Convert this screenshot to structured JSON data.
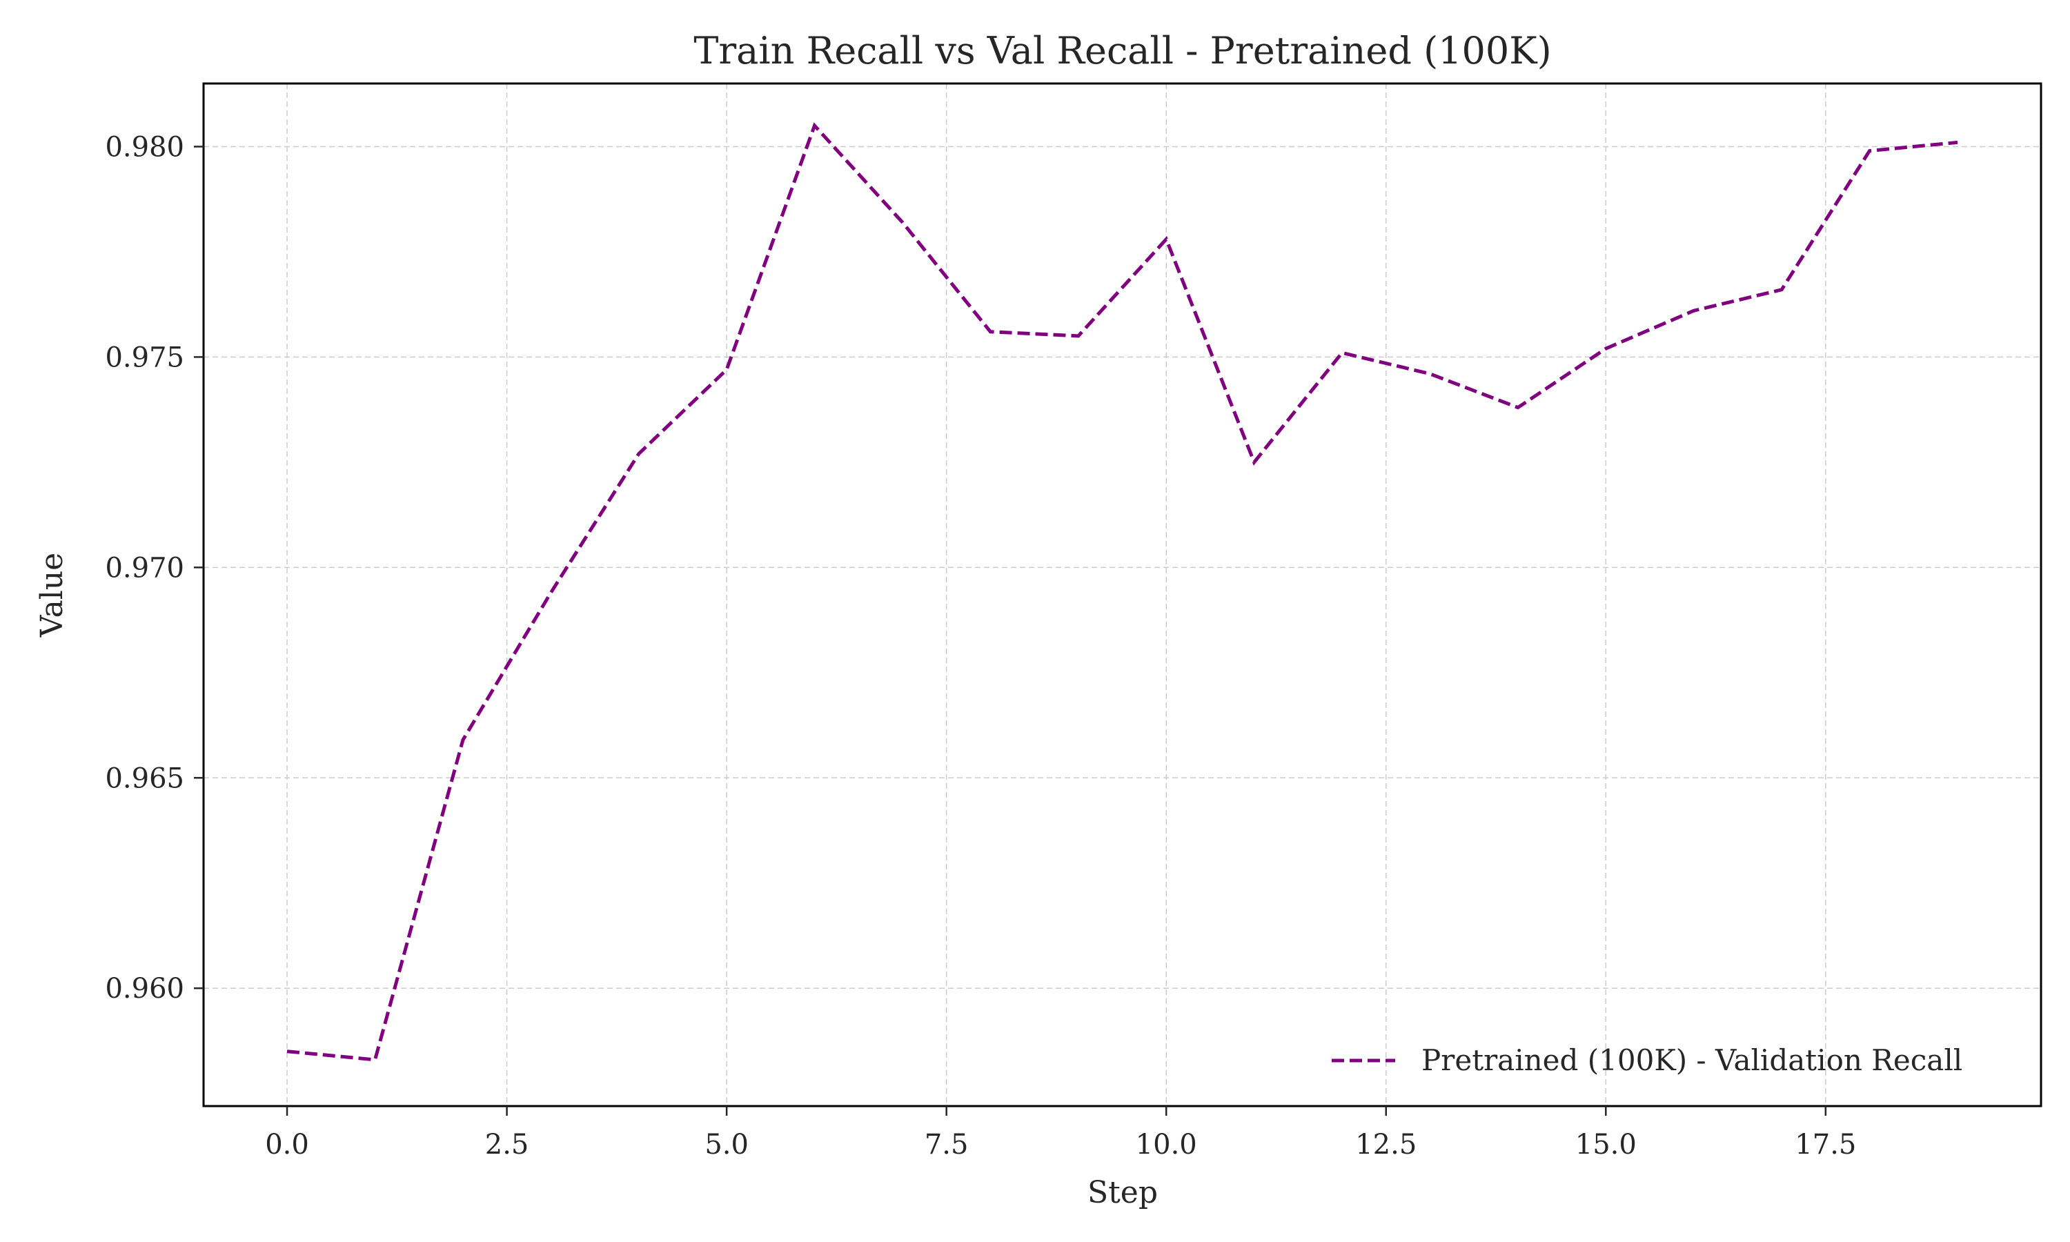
{
  "chart_data": {
    "type": "line",
    "title": "Train Recall vs Val Recall - Pretrained (100K)",
    "xlabel": "Step",
    "ylabel": "Value",
    "xlim": [
      -0.95,
      19.95
    ],
    "ylim": [
      0.9572,
      0.9815
    ],
    "x_ticks": [
      0.0,
      2.5,
      5.0,
      7.5,
      10.0,
      12.5,
      15.0,
      17.5
    ],
    "x_tick_labels": [
      "0.0",
      "2.5",
      "5.0",
      "7.5",
      "10.0",
      "12.5",
      "15.0",
      "17.5"
    ],
    "y_ticks": [
      0.96,
      0.965,
      0.97,
      0.975,
      0.98
    ],
    "y_tick_labels": [
      "0.960",
      "0.965",
      "0.970",
      "0.975",
      "0.980"
    ],
    "grid": true,
    "legend_position": "lower-right",
    "series": [
      {
        "name": "Pretrained (100K) - Validation Recall",
        "color": "#800080",
        "line_style": "dashed",
        "x": [
          0,
          1,
          2,
          3,
          4,
          5,
          6,
          7,
          8,
          9,
          10,
          11,
          12,
          13,
          14,
          15,
          16,
          17,
          18,
          19
        ],
        "values": [
          0.9585,
          0.9583,
          0.9659,
          0.9694,
          0.9727,
          0.9747,
          0.9805,
          0.9782,
          0.9756,
          0.9755,
          0.9778,
          0.9725,
          0.9751,
          0.9746,
          0.9738,
          0.9752,
          0.9761,
          0.9766,
          0.9799,
          0.9801
        ]
      }
    ]
  }
}
